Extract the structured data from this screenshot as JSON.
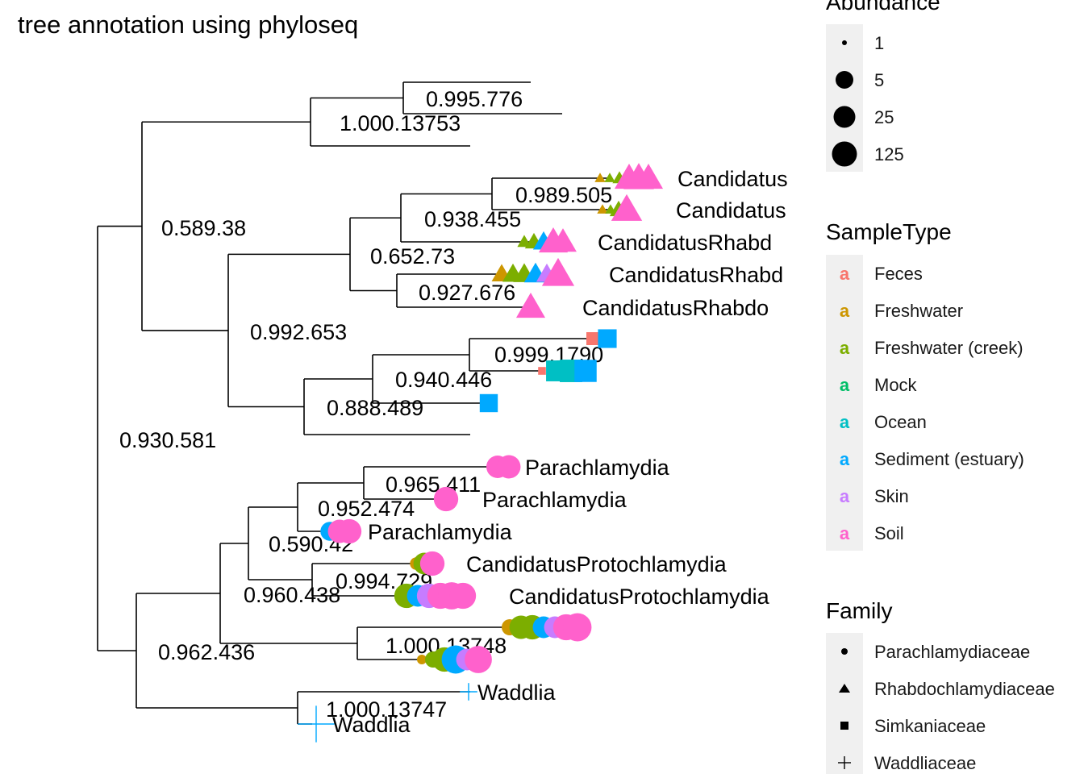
{
  "chart_data": {
    "type": "tree",
    "title": "tree annotation using phyloseq",
    "sample_colors": {
      "Feces": "#F8766D",
      "Freshwater": "#CD9600",
      "Freshwater (creek)": "#7CAE00",
      "Mock": "#00BE67",
      "Ocean": "#00BFC4",
      "Sediment (estuary)": "#00A9FF",
      "Skin": "#C77CFF",
      "Soil": "#FF61CC"
    },
    "node_labels": [
      "0.995.776",
      "1.000.13753",
      "0.589.38",
      "0.989.505",
      "0.938.455",
      "0.652.73",
      "0.927.676",
      "0.992.653",
      "0.999.1790",
      "0.940.446",
      "0.888.489",
      "0.930.581",
      "0.965.411",
      "0.952.474",
      "0.590.42",
      "0.994.729",
      "0.960.438",
      "1.000.13748",
      "0.962.436",
      "1.000.13747"
    ],
    "tips": [
      {
        "label": "",
        "family": "none",
        "points": []
      },
      {
        "label": "",
        "family": "none",
        "points": []
      },
      {
        "label": "",
        "family": "none",
        "points": []
      },
      {
        "label": "Candidatus",
        "family": "Rhabdochlamydiaceae",
        "points": [
          [
            "Freshwater",
            1
          ],
          [
            "Freshwater (creek)",
            1
          ],
          [
            "Freshwater (creek)",
            2
          ],
          [
            "Soil",
            60
          ],
          [
            "Soil",
            80
          ],
          [
            "Soil",
            60
          ]
        ]
      },
      {
        "label": "Candidatus",
        "family": "Rhabdochlamydiaceae",
        "points": [
          [
            "Freshwater",
            1
          ],
          [
            "Freshwater (creek)",
            1
          ],
          [
            "Freshwater (creek)",
            5
          ],
          [
            "Soil",
            90
          ]
        ]
      },
      {
        "label": "CandidatusRhabd",
        "family": "Rhabdochlamydiaceae",
        "points": [
          [
            "Freshwater (creek)",
            2
          ],
          [
            "Freshwater (creek)",
            5
          ],
          [
            "Sediment (estuary)",
            10
          ],
          [
            "Soil",
            60
          ],
          [
            "Soil",
            40
          ]
        ]
      },
      {
        "label": "CandidatusRhabd",
        "family": "Rhabdochlamydiaceae",
        "points": [
          [
            "Freshwater",
            8
          ],
          [
            "Freshwater (creek)",
            10
          ],
          [
            "Freshwater (creek)",
            12
          ],
          [
            "Sediment (estuary)",
            15
          ],
          [
            "Skin",
            10
          ],
          [
            "Soil",
            125
          ]
        ]
      },
      {
        "label": "CandidatusRhabdo",
        "family": "Rhabdochlamydiaceae",
        "points": [
          [
            "Freshwater (creek)",
            2
          ],
          [
            "Soil",
            60
          ]
        ]
      },
      {
        "label": "",
        "family": "Simkaniaceae",
        "points": [
          [
            "Feces",
            5
          ],
          [
            "Sediment (estuary)",
            30
          ]
        ]
      },
      {
        "label": "",
        "family": "Simkaniaceae",
        "points": [
          [
            "Feces",
            1
          ],
          [
            "Ocean",
            60
          ],
          [
            "Ocean",
            100
          ],
          [
            "Sediment (estuary)",
            90
          ]
        ]
      },
      {
        "label": "",
        "family": "Simkaniaceae",
        "points": [
          [
            "Sediment (estuary)",
            25
          ]
        ]
      },
      {
        "label": "",
        "family": "none",
        "points": []
      },
      {
        "label": "Parachlamydia",
        "family": "Parachlamydiaceae",
        "points": [
          [
            "Soil",
            25
          ],
          [
            "Soil",
            30
          ]
        ]
      },
      {
        "label": "Parachlamydia",
        "family": "Parachlamydiaceae",
        "points": [
          [
            "Freshwater (creek)",
            1
          ],
          [
            "Soil",
            40
          ]
        ]
      },
      {
        "label": "Parachlamydia",
        "family": "Parachlamydiaceae",
        "points": [
          [
            "Sediment (estuary)",
            10
          ],
          [
            "Soil",
            30
          ],
          [
            "Soil",
            40
          ]
        ]
      },
      {
        "label": "CandidatusProtochlamydia",
        "family": "Parachlamydiaceae",
        "points": [
          [
            "Freshwater",
            2
          ],
          [
            "Freshwater (creek)",
            20
          ],
          [
            "Soil",
            40
          ]
        ]
      },
      {
        "label": "CandidatusProtochlamydia",
        "family": "Parachlamydiaceae",
        "points": [
          [
            "Freshwater (creek)",
            40
          ],
          [
            "Sediment (estuary)",
            20
          ],
          [
            "Skin",
            40
          ],
          [
            "Soil",
            60
          ],
          [
            "Soil",
            80
          ],
          [
            "Soil",
            60
          ]
        ]
      },
      {
        "label": "",
        "family": "Parachlamydiaceae",
        "points": [
          [
            "Freshwater",
            5
          ],
          [
            "Freshwater (creek)",
            30
          ],
          [
            "Freshwater (creek)",
            40
          ],
          [
            "Sediment (estuary)",
            20
          ],
          [
            "Skin",
            20
          ],
          [
            "Soil",
            60
          ],
          [
            "Soil",
            100
          ]
        ]
      },
      {
        "label": "",
        "family": "Parachlamydiaceae",
        "points": [
          [
            "Freshwater",
            1
          ],
          [
            "Freshwater (creek)",
            5
          ],
          [
            "Freshwater (creek)",
            40
          ],
          [
            "Sediment (estuary)",
            100
          ],
          [
            "Skin",
            20
          ],
          [
            "Soil",
            80
          ]
        ]
      },
      {
        "label": "Waddlia",
        "family": "Waddliaceae",
        "points": [
          [
            "Sediment (estuary)",
            2
          ]
        ]
      },
      {
        "label": "Waddlia",
        "family": "Waddliaceae",
        "points": [
          [
            "Sediment (estuary)",
            60
          ]
        ]
      }
    ],
    "legends": {
      "abundance": {
        "title": "Abundance",
        "values": [
          "1",
          "5",
          "25",
          "125"
        ]
      },
      "sample_type": {
        "title": "SampleType",
        "values": [
          "Feces",
          "Freshwater",
          "Freshwater (creek)",
          "Mock",
          "Ocean",
          "Sediment (estuary)",
          "Skin",
          "Soil"
        ],
        "key_glyph": "a"
      },
      "family": {
        "title": "Family",
        "values": [
          "Parachlamydiaceae",
          "Rhabdochlamydiaceae",
          "Simkaniaceae",
          "Waddliaceae"
        ]
      }
    }
  }
}
